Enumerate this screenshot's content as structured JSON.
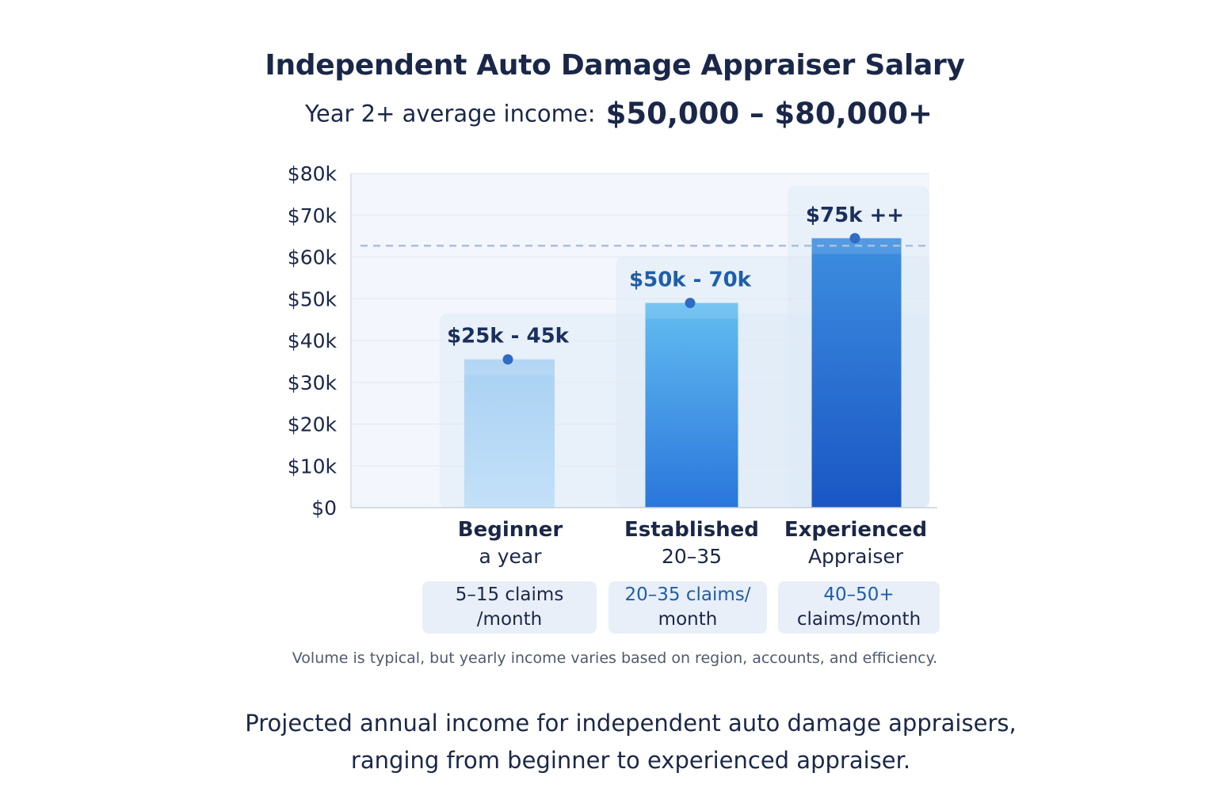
{
  "chart_data": {
    "type": "bar",
    "title": "Independent Auto Damage Appraiser Salary",
    "subtitle_label": "Year 2+ average income:",
    "subtitle_value": "$50,000 – $80,000+",
    "ylim": [
      0,
      80000
    ],
    "yticks": [
      {
        "value": 0,
        "label": "$0"
      },
      {
        "value": 10000,
        "label": "$10k"
      },
      {
        "value": 20000,
        "label": "$20k"
      },
      {
        "value": 30000,
        "label": "$30k"
      },
      {
        "value": 40000,
        "label": "$40k"
      },
      {
        "value": 50000,
        "label": "$50k"
      },
      {
        "value": 60000,
        "label": "$60k"
      },
      {
        "value": 70000,
        "label": "$70k"
      },
      {
        "value": 80000,
        "label": "$80k"
      }
    ],
    "reference_line": 62700,
    "grid": true,
    "bars": [
      {
        "name": "Beginner",
        "sub": "a year",
        "value": 35500,
        "band_top": 46500,
        "range_label": "$25k - 45k",
        "claims_line1": "5–15 claims",
        "claims_line2": "/month",
        "color_top": "#a9d1f3",
        "color_bottom": "#c3e0f8",
        "label_color": "#1a2f5e"
      },
      {
        "name": "Established",
        "sub": "20–35",
        "value": 49000,
        "band_top": 60200,
        "range_label": "$50k - 70k",
        "claims_line1": "20–35 claims/",
        "claims_line2": "month",
        "color_top": "#63bdf0",
        "color_bottom": "#2a76dc",
        "label_color": "#1f5ea8"
      },
      {
        "name": "Experienced",
        "sub": "Appraiser",
        "value": 64500,
        "band_top": 77000,
        "range_label": "$75k ++",
        "claims_line1": "40–50+",
        "claims_line2": "claims/month",
        "color_top": "#3d8ee0",
        "color_bottom": "#1a56c4",
        "label_color": "#1a2f5e"
      }
    ]
  },
  "note": "Volume is typical, but yearly income varies based on region, accounts, and efficiency.",
  "caption_line1": "Projected annual income for independent auto damage appraisers,",
  "caption_line2": "ranging from beginner to experienced appraiser."
}
